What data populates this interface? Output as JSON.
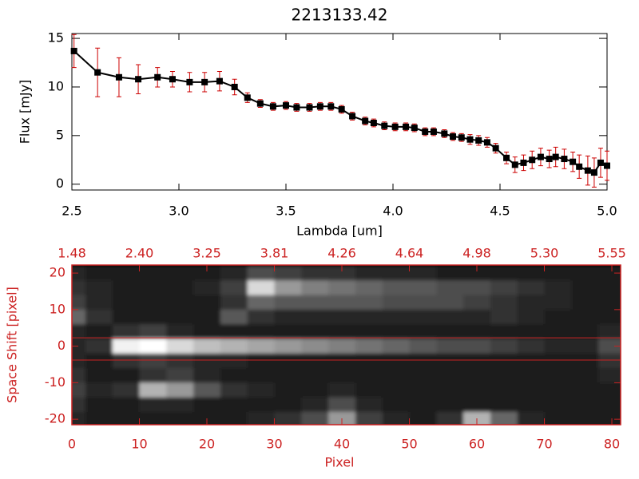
{
  "chart_data": [
    {
      "type": "line",
      "title": "2213133.42",
      "x_label": "Lambda [um]",
      "y_label": "Flux [mJy]",
      "x": [
        2.51,
        2.62,
        2.72,
        2.81,
        2.9,
        2.97,
        3.05,
        3.12,
        3.19,
        3.26,
        3.32,
        3.38,
        3.44,
        3.5,
        3.55,
        3.61,
        3.66,
        3.71,
        3.76,
        3.81,
        3.87,
        3.91,
        3.96,
        4.01,
        4.06,
        4.1,
        4.15,
        4.19,
        4.24,
        4.28,
        4.32,
        4.36,
        4.4,
        4.44,
        4.48,
        4.53,
        4.57,
        4.61,
        4.65,
        4.69,
        4.73,
        4.76,
        4.8,
        4.84,
        4.87,
        4.91,
        4.94,
        4.97,
        5.0
      ],
      "series": [
        {
          "color": "#000000",
          "error_color": "#cc0000",
          "values": [
            13.7,
            11.5,
            11.0,
            10.8,
            11.0,
            10.8,
            10.5,
            10.5,
            10.6,
            10.0,
            8.9,
            8.3,
            8.0,
            8.1,
            7.9,
            7.9,
            8.0,
            8.0,
            7.7,
            7.0,
            6.5,
            6.3,
            6.0,
            5.9,
            5.9,
            5.8,
            5.4,
            5.4,
            5.2,
            4.9,
            4.8,
            4.6,
            4.5,
            4.3,
            3.7,
            2.7,
            2.0,
            2.2,
            2.5,
            2.8,
            2.6,
            2.8,
            2.6,
            2.3,
            1.8,
            1.4,
            1.2,
            2.2,
            1.9
          ],
          "errors": [
            1.7,
            2.5,
            2.0,
            1.5,
            1.0,
            0.8,
            1.0,
            1.0,
            1.0,
            0.8,
            0.5,
            0.4,
            0.4,
            0.4,
            0.4,
            0.4,
            0.4,
            0.4,
            0.4,
            0.4,
            0.4,
            0.4,
            0.4,
            0.4,
            0.4,
            0.4,
            0.4,
            0.4,
            0.4,
            0.4,
            0.4,
            0.5,
            0.5,
            0.5,
            0.5,
            0.6,
            0.8,
            0.8,
            0.9,
            0.9,
            0.9,
            1.0,
            1.0,
            1.0,
            1.2,
            1.5,
            1.5,
            1.5,
            1.5
          ]
        }
      ],
      "xlim": [
        2.5,
        5.0
      ],
      "ylim": [
        -0.6,
        15.5
      ],
      "xticks": [
        2.5,
        {
          "value": 3,
          "label": "3.0"
        },
        3.5,
        {
          "value": 4,
          "label": "4.0"
        },
        4.5,
        {
          "value": 5,
          "label": "5.0"
        }
      ],
      "yticks": [
        0,
        5,
        10,
        15
      ]
    },
    {
      "type": "heatmap",
      "x_label": "Pixel",
      "y_label": "Space Shift [pixel]",
      "axis_color": "#cc2222",
      "xlim": [
        0,
        81.3
      ],
      "ylim": [
        -21.5,
        22.2
      ],
      "xticks": [
        0,
        10,
        20,
        30,
        40,
        50,
        60,
        70,
        80
      ],
      "yticks": [
        -20,
        -10,
        0,
        10,
        20
      ],
      "x2ticks": [
        {
          "value": 0,
          "label": "1.48"
        },
        {
          "value": 10,
          "label": "2.40"
        },
        {
          "value": 20,
          "label": "3.25"
        },
        {
          "value": 30,
          "label": "3.81"
        },
        {
          "value": 40,
          "label": "4.26"
        },
        {
          "value": 50,
          "label": "4.64"
        },
        {
          "value": 60,
          "label": "4.98"
        },
        {
          "value": 70,
          "label": "5.30"
        },
        {
          "value": 80,
          "label": "5.55"
        }
      ],
      "hlines": [
        2.3,
        -3.8
      ],
      "x": [
        0,
        4,
        8,
        12,
        16,
        20,
        24,
        28,
        32,
        36,
        40,
        44,
        48,
        52,
        56,
        60,
        64,
        68,
        72,
        76,
        80
      ],
      "y": [
        20,
        16,
        12,
        8,
        4,
        0,
        -4,
        -8,
        -12,
        -16,
        -20
      ],
      "z": [
        [
          0.15,
          0.1,
          0.1,
          0.1,
          0.1,
          0.1,
          0.15,
          0.3,
          0.25,
          0.2,
          0.2,
          0.15,
          0.15,
          0.15,
          0.1,
          0.1,
          0.1,
          0.1,
          0.1,
          0.1,
          0.1
        ],
        [
          0.2,
          0.15,
          0.1,
          0.1,
          0.1,
          0.15,
          0.25,
          0.85,
          0.6,
          0.5,
          0.45,
          0.4,
          0.35,
          0.35,
          0.3,
          0.3,
          0.25,
          0.2,
          0.15,
          0.1,
          0.1
        ],
        [
          0.25,
          0.15,
          0.1,
          0.1,
          0.1,
          0.1,
          0.2,
          0.4,
          0.35,
          0.35,
          0.35,
          0.35,
          0.3,
          0.3,
          0.3,
          0.25,
          0.2,
          0.15,
          0.15,
          0.1,
          0.1
        ],
        [
          0.4,
          0.2,
          0.1,
          0.1,
          0.1,
          0.1,
          0.35,
          0.2,
          0.15,
          0.15,
          0.15,
          0.15,
          0.15,
          0.15,
          0.15,
          0.15,
          0.2,
          0.15,
          0.1,
          0.1,
          0.1
        ],
        [
          0.15,
          0.1,
          0.2,
          0.25,
          0.15,
          0.1,
          0.1,
          0.1,
          0.1,
          0.1,
          0.1,
          0.1,
          0.1,
          0.1,
          0.1,
          0.1,
          0.1,
          0.1,
          0.1,
          0.1,
          0.15
        ],
        [
          0.15,
          0.2,
          0.95,
          1.0,
          0.85,
          0.75,
          0.7,
          0.65,
          0.6,
          0.55,
          0.5,
          0.45,
          0.4,
          0.35,
          0.3,
          0.3,
          0.25,
          0.2,
          0.15,
          0.15,
          0.3
        ],
        [
          0.15,
          0.1,
          0.2,
          0.25,
          0.2,
          0.15,
          0.15,
          0.1,
          0.1,
          0.1,
          0.1,
          0.1,
          0.1,
          0.1,
          0.1,
          0.1,
          0.1,
          0.1,
          0.1,
          0.1,
          0.2
        ],
        [
          0.2,
          0.1,
          0.1,
          0.2,
          0.25,
          0.15,
          0.1,
          0.1,
          0.1,
          0.1,
          0.1,
          0.1,
          0.1,
          0.1,
          0.1,
          0.1,
          0.1,
          0.1,
          0.1,
          0.1,
          0.15
        ],
        [
          0.25,
          0.15,
          0.2,
          0.7,
          0.6,
          0.35,
          0.2,
          0.15,
          0.1,
          0.1,
          0.15,
          0.1,
          0.1,
          0.1,
          0.1,
          0.1,
          0.1,
          0.1,
          0.1,
          0.1,
          0.1
        ],
        [
          0.2,
          0.1,
          0.1,
          0.15,
          0.15,
          0.1,
          0.1,
          0.1,
          0.1,
          0.15,
          0.3,
          0.15,
          0.1,
          0.1,
          0.1,
          0.1,
          0.1,
          0.1,
          0.1,
          0.1,
          0.1
        ],
        [
          0.15,
          0.1,
          0.1,
          0.1,
          0.1,
          0.1,
          0.1,
          0.15,
          0.2,
          0.3,
          0.6,
          0.25,
          0.15,
          0.1,
          0.2,
          0.7,
          0.4,
          0.15,
          0.1,
          0.1,
          0.1
        ]
      ]
    }
  ]
}
